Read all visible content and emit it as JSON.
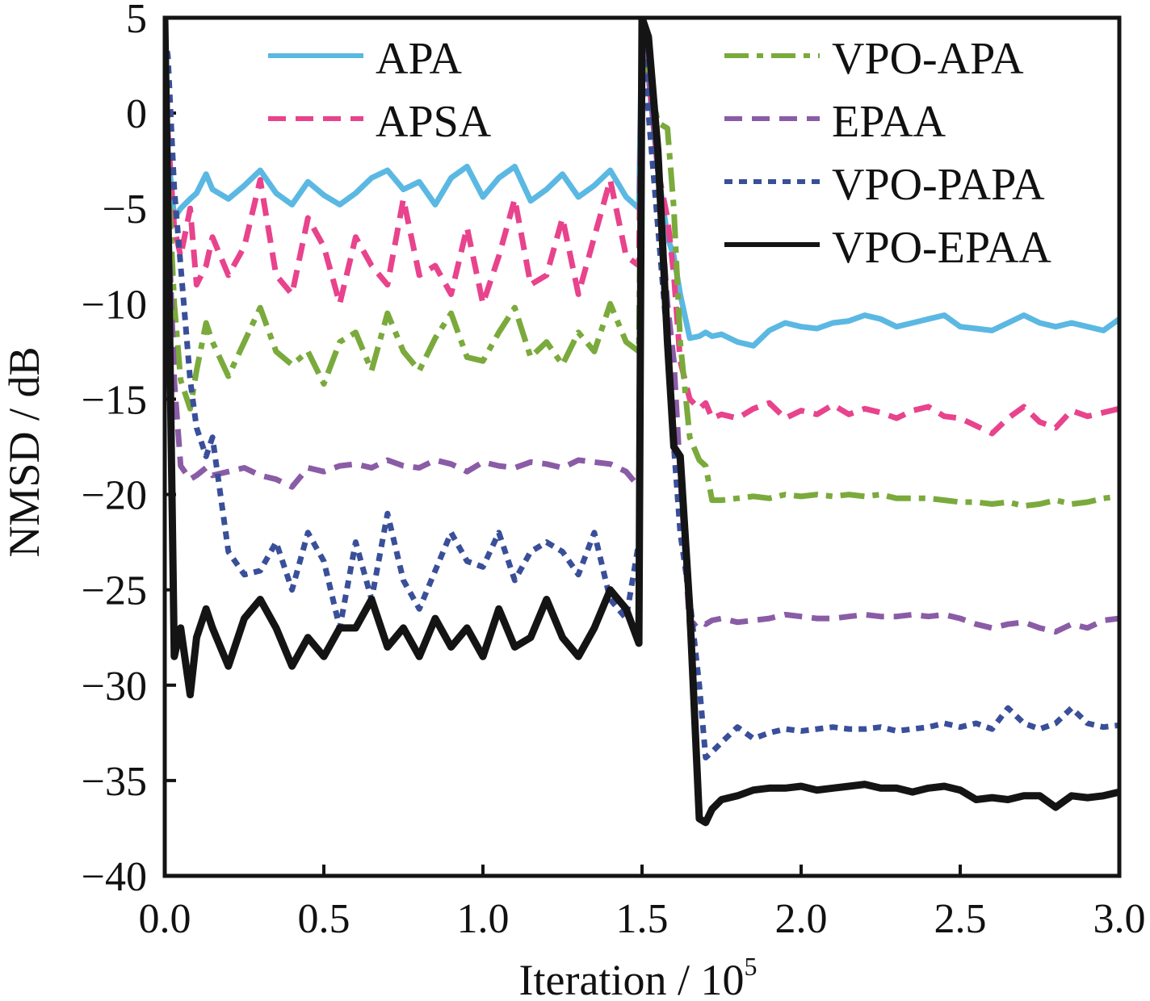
{
  "chart_data": {
    "type": "line",
    "title": "",
    "xlabel": "Iteration / 10",
    "xlabel_superscript": "5",
    "ylabel": "NMSD / dB",
    "xlim": [
      0.0,
      3.0
    ],
    "ylim": [
      -40,
      5
    ],
    "xticks": [
      0.0,
      0.5,
      1.0,
      1.5,
      2.0,
      2.5,
      3.0
    ],
    "xtick_labels": [
      "0.0",
      "0.5",
      "1.0",
      "1.5",
      "2.0",
      "2.5",
      "3.0"
    ],
    "yticks": [
      5,
      0,
      -5,
      -10,
      -15,
      -20,
      -25,
      -30,
      -35,
      -40
    ],
    "ytick_labels": [
      "5",
      "0",
      "−5",
      "−10",
      "−15",
      "−20",
      "−25",
      "−30",
      "−35",
      "−40"
    ],
    "grid": false,
    "legend_placement": "top (two columns)",
    "legend": [
      {
        "name": "APA",
        "color": "#5bb8e2",
        "style": "solid",
        "column": "left"
      },
      {
        "name": "APSA",
        "color": "#e8438c",
        "style": "dashed",
        "column": "left"
      },
      {
        "name": "VPO-APA",
        "color": "#7aaa3c",
        "style": "dash-dot",
        "column": "right"
      },
      {
        "name": "EPAA",
        "color": "#8a5ca6",
        "style": "dashed",
        "column": "right"
      },
      {
        "name": "VPO-PAPA",
        "color": "#3a4f9a",
        "style": "dotted",
        "column": "right"
      },
      {
        "name": "VPO-EPAA",
        "color": "#141414",
        "style": "solid",
        "column": "right"
      }
    ],
    "x": [
      0.0,
      0.01,
      0.03,
      0.05,
      0.08,
      0.1,
      0.13,
      0.15,
      0.2,
      0.25,
      0.3,
      0.35,
      0.4,
      0.45,
      0.5,
      0.55,
      0.6,
      0.65,
      0.7,
      0.75,
      0.8,
      0.85,
      0.9,
      0.95,
      1.0,
      1.05,
      1.1,
      1.15,
      1.2,
      1.25,
      1.3,
      1.35,
      1.4,
      1.45,
      1.49,
      1.5,
      1.52,
      1.55,
      1.58,
      1.6,
      1.62,
      1.65,
      1.68,
      1.7,
      1.72,
      1.75,
      1.8,
      1.85,
      1.9,
      1.95,
      2.0,
      2.05,
      2.1,
      2.15,
      2.2,
      2.25,
      2.3,
      2.35,
      2.4,
      2.45,
      2.5,
      2.55,
      2.6,
      2.65,
      2.7,
      2.75,
      2.8,
      2.85,
      2.9,
      2.95,
      3.0
    ],
    "series": [
      {
        "name": "APA",
        "values": [
          5,
          -2,
          -5.5,
          -5,
          -4.5,
          -4.2,
          -3.2,
          -4,
          -4.5,
          -3.8,
          -3.0,
          -4.2,
          -4.8,
          -3.6,
          -4.3,
          -4.8,
          -4.2,
          -3.4,
          -3.0,
          -4.0,
          -3.6,
          -4.8,
          -3.4,
          -2.8,
          -4.4,
          -3.4,
          -2.8,
          -4.6,
          -4.0,
          -3.2,
          -4.4,
          -3.8,
          -3.0,
          -4.4,
          -5.0,
          5,
          3,
          -3,
          -6.5,
          -7.5,
          -9.5,
          -11.8,
          -11.7,
          -11.5,
          -11.7,
          -11.6,
          -12.0,
          -12.2,
          -11.4,
          -11.0,
          -11.2,
          -11.3,
          -11.0,
          -10.9,
          -10.6,
          -10.8,
          -11.2,
          -11.0,
          -10.8,
          -10.6,
          -11.2,
          -11.3,
          -11.4,
          -11.0,
          -10.6,
          -11.0,
          -11.2,
          -11.0,
          -11.2,
          -11.4,
          -10.8
        ]
      },
      {
        "name": "APSA",
        "values": [
          5,
          -1,
          -6,
          -7.5,
          -5.0,
          -9.0,
          -8.0,
          -6.5,
          -8.5,
          -7.0,
          -3.5,
          -8.5,
          -9.5,
          -5.5,
          -7.0,
          -10.0,
          -6.5,
          -8.0,
          -9.0,
          -4.5,
          -8.5,
          -8.0,
          -9.5,
          -6.0,
          -10.0,
          -7.5,
          -4.5,
          -9.0,
          -8.5,
          -5.5,
          -9.5,
          -6.5,
          -3.5,
          -7.5,
          -8.0,
          5,
          2,
          -3,
          -5.5,
          -8.5,
          -13,
          -15.0,
          -15.5,
          -15.2,
          -16.0,
          -15.8,
          -16.0,
          -15.5,
          -15.2,
          -16.0,
          -15.6,
          -15.8,
          -15.3,
          -15.8,
          -15.5,
          -15.7,
          -16.0,
          -15.6,
          -15.4,
          -15.9,
          -16.0,
          -16.4,
          -16.8,
          -16.0,
          -15.4,
          -16.2,
          -16.5,
          -15.6,
          -15.9,
          -15.7,
          -15.5
        ]
      },
      {
        "name": "VPO-APA",
        "values": [
          5,
          -3,
          -10,
          -14,
          -15.5,
          -13.5,
          -11.0,
          -12.0,
          -13.8,
          -12.0,
          -10.2,
          -12.5,
          -13.2,
          -12.5,
          -14.2,
          -12.0,
          -11.5,
          -13.5,
          -10.5,
          -12.5,
          -13.5,
          -11.8,
          -10.5,
          -12.8,
          -13.0,
          -11.5,
          -10.2,
          -12.8,
          -12.0,
          -13.2,
          -11.5,
          -12.5,
          -10.0,
          -12.0,
          -12.5,
          5,
          2,
          -0.5,
          -0.8,
          -5,
          -12,
          -17.0,
          -18.2,
          -18.5,
          -20.3,
          -20.3,
          -20.2,
          -20.1,
          -20.2,
          -20.0,
          -20.1,
          -20.0,
          -20.1,
          -20.0,
          -20.1,
          -20.0,
          -20.2,
          -20.2,
          -20.2,
          -20.3,
          -20.4,
          -20.4,
          -20.5,
          -20.4,
          -20.6,
          -20.5,
          -20.3,
          -20.5,
          -20.4,
          -20.2,
          -20.1
        ]
      },
      {
        "name": "EPAA",
        "values": [
          5,
          -5,
          -14,
          -18.5,
          -19.2,
          -19.0,
          -18.6,
          -19.0,
          -18.8,
          -18.6,
          -19.0,
          -19.2,
          -19.6,
          -18.6,
          -18.8,
          -18.5,
          -18.4,
          -18.6,
          -18.2,
          -18.5,
          -18.6,
          -18.2,
          -18.4,
          -18.8,
          -18.3,
          -18.5,
          -18.6,
          -18.3,
          -18.4,
          -18.6,
          -18.2,
          -18.3,
          -18.4,
          -18.8,
          -19.6,
          5,
          2,
          -3,
          -10,
          -13,
          -19,
          -27.0,
          -26.6,
          -26.8,
          -26.6,
          -26.5,
          -26.7,
          -26.6,
          -26.5,
          -26.3,
          -26.4,
          -26.5,
          -26.5,
          -26.4,
          -26.3,
          -26.4,
          -26.4,
          -26.3,
          -26.4,
          -26.3,
          -26.5,
          -26.8,
          -27.0,
          -26.8,
          -26.7,
          -27.0,
          -27.2,
          -26.8,
          -27.0,
          -26.6,
          -26.5
        ]
      },
      {
        "name": "VPO-PAPA",
        "values": [
          4,
          3,
          -4,
          -8,
          -14,
          -16.5,
          -18,
          -17,
          -23.0,
          -24.2,
          -24.0,
          -22.5,
          -25.0,
          -22.0,
          -23.5,
          -27.0,
          -22.5,
          -25.5,
          -21.0,
          -24.5,
          -26.0,
          -24.0,
          -22.0,
          -23.5,
          -23.8,
          -22.0,
          -24.5,
          -23.0,
          -22.5,
          -23.0,
          -24.2,
          -22.0,
          -25.5,
          -26.5,
          -22.5,
          5,
          0,
          -6,
          -12,
          -17.5,
          -22,
          -25.5,
          -30,
          -33.8,
          -33.5,
          -33.0,
          -32.2,
          -32.8,
          -32.5,
          -32.3,
          -32.4,
          -32.3,
          -32.2,
          -32.3,
          -32.3,
          -32.2,
          -32.4,
          -32.3,
          -32.2,
          -32.0,
          -32.2,
          -32.0,
          -32.3,
          -31.2,
          -32.0,
          -32.3,
          -32.0,
          -31.2,
          -32.0,
          -32.2,
          -32.1
        ]
      },
      {
        "name": "VPO-EPAA",
        "values": [
          5,
          -5,
          -28.5,
          -27.0,
          -30.5,
          -27.5,
          -26.0,
          -27.0,
          -29.0,
          -26.5,
          -25.5,
          -27.0,
          -29.0,
          -27.5,
          -28.5,
          -27.0,
          -27.0,
          -25.5,
          -28.0,
          -27.0,
          -28.5,
          -26.5,
          -28.0,
          -27.0,
          -28.5,
          -26.0,
          -28.0,
          -27.5,
          -25.5,
          -27.5,
          -28.5,
          -27.0,
          -25.0,
          -26.0,
          -27.8,
          5,
          4,
          -2,
          -12,
          -17.5,
          -18,
          -26,
          -37.0,
          -37.2,
          -36.5,
          -36.0,
          -35.8,
          -35.5,
          -35.4,
          -35.4,
          -35.3,
          -35.5,
          -35.4,
          -35.3,
          -35.2,
          -35.4,
          -35.4,
          -35.6,
          -35.4,
          -35.3,
          -35.5,
          -36.0,
          -35.9,
          -36.0,
          -35.8,
          -35.8,
          -36.4,
          -35.8,
          -35.9,
          -35.8,
          -35.6
        ]
      }
    ]
  }
}
